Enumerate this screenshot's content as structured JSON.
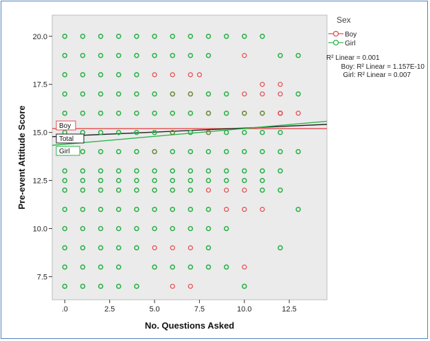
{
  "chart_data": {
    "type": "scatter",
    "title": "",
    "xlabel": "No. Questions Asked",
    "ylabel": "Pre-event Attitude Score",
    "xlim": [
      -0.7,
      14.6
    ],
    "ylim": [
      6.3,
      21.1
    ],
    "x_ticks": [
      0,
      2.5,
      5,
      7.5,
      10,
      12.5
    ],
    "x_tick_labels": [
      ".0",
      "2.5",
      "5.0",
      "7.5",
      "10.0",
      "12.5"
    ],
    "y_ticks": [
      7.5,
      10,
      12.5,
      15,
      17.5,
      20
    ],
    "y_tick_labels": [
      "7.5",
      "10.0",
      "12.5",
      "15.0",
      "17.5",
      "20.0"
    ],
    "grid": false,
    "legend": {
      "title": "Sex",
      "position": "right",
      "entries": [
        {
          "label": "Boy",
          "color": "#e8474c"
        },
        {
          "label": "Girl",
          "color": "#2db34a"
        }
      ]
    },
    "r2": {
      "total": "R² Linear = 0.001",
      "boy": "Boy: R² Linear = 1.157E-10",
      "girl": "Girl: R² Linear = 0.007"
    },
    "fit_lines": [
      {
        "name": "Boy",
        "color": "#e8474c",
        "x": [
          -0.7,
          14.6
        ],
        "y": [
          15.2,
          15.2
        ]
      },
      {
        "name": "Total",
        "color": "#222222",
        "x": [
          -0.7,
          14.6
        ],
        "y": [
          14.78,
          15.42
        ]
      },
      {
        "name": "Girl",
        "color": "#2db34a",
        "x": [
          -0.7,
          14.6
        ],
        "y": [
          14.33,
          15.58
        ]
      }
    ],
    "colors": {
      "boy": "#e8474c",
      "girl": "#2db34a",
      "mixed": "#6e8a3c",
      "plot_bg": "#ebebeb"
    },
    "series": [
      {
        "name": "Boy",
        "points": [
          [
            5,
            18
          ],
          [
            6,
            18
          ],
          [
            7,
            18
          ],
          [
            7.5,
            18
          ],
          [
            10,
            19
          ],
          [
            11,
            17.5
          ],
          [
            12,
            17.5
          ],
          [
            10,
            17
          ],
          [
            11,
            17
          ],
          [
            12,
            17
          ],
          [
            10,
            16
          ],
          [
            11,
            16
          ],
          [
            12,
            16
          ],
          [
            13,
            16
          ],
          [
            5,
            14
          ],
          [
            9,
            12
          ],
          [
            10,
            12
          ],
          [
            5,
            9
          ],
          [
            6,
            9
          ],
          [
            7,
            9
          ],
          [
            6,
            7
          ],
          [
            7,
            7
          ],
          [
            10,
            8
          ],
          [
            11,
            11
          ],
          [
            8,
            12
          ],
          [
            9,
            11
          ],
          [
            10,
            11
          ],
          [
            12,
            16
          ],
          [
            6,
            15
          ],
          [
            8,
            15
          ],
          [
            8,
            16
          ],
          [
            7,
            17
          ],
          [
            6,
            17
          ]
        ]
      },
      {
        "name": "Girl",
        "points": [
          [
            0,
            20
          ],
          [
            1,
            20
          ],
          [
            2,
            20
          ],
          [
            3,
            20
          ],
          [
            4,
            20
          ],
          [
            5,
            20
          ],
          [
            6,
            20
          ],
          [
            7,
            20
          ],
          [
            8,
            20
          ],
          [
            9,
            20
          ],
          [
            10,
            20
          ],
          [
            11,
            20
          ],
          [
            0,
            19
          ],
          [
            1,
            19
          ],
          [
            2,
            19
          ],
          [
            3,
            19
          ],
          [
            4,
            19
          ],
          [
            5,
            19
          ],
          [
            6,
            19
          ],
          [
            7,
            19
          ],
          [
            8,
            19
          ],
          [
            12,
            19
          ],
          [
            13,
            19
          ],
          [
            0,
            18
          ],
          [
            1,
            18
          ],
          [
            2,
            18
          ],
          [
            3,
            18
          ],
          [
            4,
            18
          ],
          [
            0,
            17
          ],
          [
            1,
            17
          ],
          [
            2,
            17
          ],
          [
            3,
            17
          ],
          [
            4,
            17
          ],
          [
            5,
            17
          ],
          [
            6,
            17
          ],
          [
            7,
            17
          ],
          [
            8,
            17
          ],
          [
            9,
            17
          ],
          [
            13,
            17
          ],
          [
            0,
            16
          ],
          [
            1,
            16
          ],
          [
            2,
            16
          ],
          [
            3,
            16
          ],
          [
            4,
            16
          ],
          [
            5,
            16
          ],
          [
            6,
            16
          ],
          [
            7,
            16
          ],
          [
            8,
            16
          ],
          [
            9,
            16
          ],
          [
            10,
            16
          ],
          [
            11,
            16
          ],
          [
            0,
            15
          ],
          [
            1,
            15
          ],
          [
            2,
            15
          ],
          [
            3,
            15
          ],
          [
            4,
            15
          ],
          [
            5,
            15
          ],
          [
            6,
            15
          ],
          [
            7,
            15
          ],
          [
            8,
            15
          ],
          [
            9,
            15
          ],
          [
            10,
            15
          ],
          [
            11,
            15
          ],
          [
            12,
            15
          ],
          [
            0,
            14
          ],
          [
            1,
            14
          ],
          [
            2,
            14
          ],
          [
            3,
            14
          ],
          [
            4,
            14
          ],
          [
            5,
            14
          ],
          [
            6,
            14
          ],
          [
            7,
            14
          ],
          [
            8,
            14
          ],
          [
            9,
            14
          ],
          [
            10,
            14
          ],
          [
            11,
            14
          ],
          [
            12,
            14
          ],
          [
            13,
            14
          ],
          [
            0,
            13
          ],
          [
            1,
            13
          ],
          [
            2,
            13
          ],
          [
            3,
            13
          ],
          [
            4,
            13
          ],
          [
            5,
            13
          ],
          [
            6,
            13
          ],
          [
            7,
            13
          ],
          [
            8,
            13
          ],
          [
            9,
            13
          ],
          [
            10,
            13
          ],
          [
            11,
            13
          ],
          [
            12,
            13
          ],
          [
            0,
            12.5
          ],
          [
            1,
            12.5
          ],
          [
            2,
            12.5
          ],
          [
            3,
            12.5
          ],
          [
            4,
            12.5
          ],
          [
            5,
            12.5
          ],
          [
            6,
            12.5
          ],
          [
            7,
            12.5
          ],
          [
            8,
            12.5
          ],
          [
            9,
            12.5
          ],
          [
            10,
            12.5
          ],
          [
            11,
            12.5
          ],
          [
            0,
            12
          ],
          [
            1,
            12
          ],
          [
            2,
            12
          ],
          [
            3,
            12
          ],
          [
            4,
            12
          ],
          [
            5,
            12
          ],
          [
            6,
            12
          ],
          [
            7,
            12
          ],
          [
            11,
            12
          ],
          [
            12,
            12
          ],
          [
            0,
            11
          ],
          [
            1,
            11
          ],
          [
            2,
            11
          ],
          [
            3,
            11
          ],
          [
            4,
            11
          ],
          [
            5,
            11
          ],
          [
            6,
            11
          ],
          [
            7,
            11
          ],
          [
            8,
            11
          ],
          [
            13,
            11
          ],
          [
            0,
            10
          ],
          [
            1,
            10
          ],
          [
            2,
            10
          ],
          [
            3,
            10
          ],
          [
            4,
            10
          ],
          [
            5,
            10
          ],
          [
            6,
            10
          ],
          [
            7,
            10
          ],
          [
            8,
            10
          ],
          [
            9,
            10
          ],
          [
            0,
            9
          ],
          [
            1,
            9
          ],
          [
            2,
            9
          ],
          [
            3,
            9
          ],
          [
            4,
            9
          ],
          [
            8,
            9
          ],
          [
            12,
            9
          ],
          [
            0,
            8
          ],
          [
            1,
            8
          ],
          [
            2,
            8
          ],
          [
            3,
            8
          ],
          [
            5,
            8
          ],
          [
            6,
            8
          ],
          [
            7,
            8
          ],
          [
            8,
            8
          ],
          [
            9,
            8
          ],
          [
            0,
            7
          ],
          [
            1,
            7
          ],
          [
            2,
            7
          ],
          [
            3,
            7
          ],
          [
            4,
            7
          ],
          [
            10,
            7
          ]
        ]
      }
    ]
  }
}
